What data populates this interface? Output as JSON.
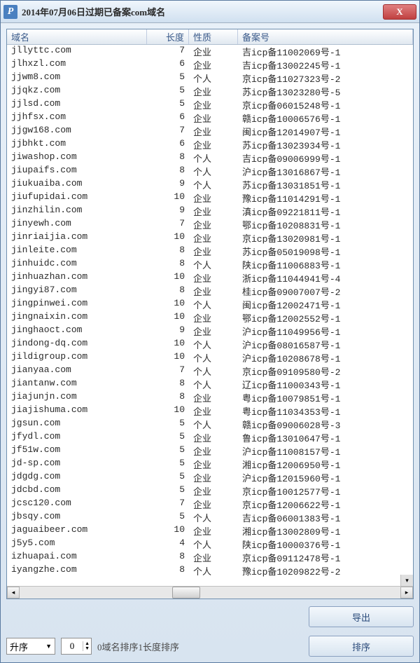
{
  "window": {
    "title": "2014年07月06日过期已备案com域名",
    "close_label": "X"
  },
  "columns": {
    "domain": "域名",
    "length": "长度",
    "nature": "性质",
    "registration": "备案号"
  },
  "rows": [
    {
      "domain": "jllyttc.com",
      "len": "7",
      "nature": "企业",
      "reg": "吉icp备11002069号-1"
    },
    {
      "domain": "jlhxzl.com",
      "len": "6",
      "nature": "企业",
      "reg": "吉icp备13002245号-1"
    },
    {
      "domain": "jjwm8.com",
      "len": "5",
      "nature": "个人",
      "reg": "京icp备11027323号-2"
    },
    {
      "domain": "jjqkz.com",
      "len": "5",
      "nature": "企业",
      "reg": "苏icp备13023280号-5"
    },
    {
      "domain": "jjlsd.com",
      "len": "5",
      "nature": "企业",
      "reg": "京icp备06015248号-1"
    },
    {
      "domain": "jjhfsx.com",
      "len": "6",
      "nature": "企业",
      "reg": "赣icp备10006576号-1"
    },
    {
      "domain": "jjgw168.com",
      "len": "7",
      "nature": "企业",
      "reg": "闽icp备12014907号-1"
    },
    {
      "domain": "jjbhkt.com",
      "len": "6",
      "nature": "企业",
      "reg": "苏icp备13023934号-1"
    },
    {
      "domain": "jiwashop.com",
      "len": "8",
      "nature": "个人",
      "reg": "吉icp备09006999号-1"
    },
    {
      "domain": "jiupaifs.com",
      "len": "8",
      "nature": "个人",
      "reg": "沪icp备13016867号-1"
    },
    {
      "domain": "jiukuaiba.com",
      "len": "9",
      "nature": "个人",
      "reg": "苏icp备13031851号-1"
    },
    {
      "domain": "jiufupidai.com",
      "len": "10",
      "nature": "企业",
      "reg": "豫icp备11014291号-1"
    },
    {
      "domain": "jinzhilin.com",
      "len": "9",
      "nature": "企业",
      "reg": "滇icp备09221811号-1"
    },
    {
      "domain": "jinyewh.com",
      "len": "7",
      "nature": "企业",
      "reg": "鄂icp备10208831号-1"
    },
    {
      "domain": "jinriaijia.com",
      "len": "10",
      "nature": "企业",
      "reg": "京icp备13020981号-1"
    },
    {
      "domain": "jinleite.com",
      "len": "8",
      "nature": "企业",
      "reg": "苏icp备05019098号-1"
    },
    {
      "domain": "jinhuidc.com",
      "len": "8",
      "nature": "个人",
      "reg": "陕icp备11006883号-1"
    },
    {
      "domain": "jinhuazhan.com",
      "len": "10",
      "nature": "企业",
      "reg": "浙icp备11044941号-4"
    },
    {
      "domain": "jingyi87.com",
      "len": "8",
      "nature": "企业",
      "reg": "桂icp备09007007号-2"
    },
    {
      "domain": "jingpinwei.com",
      "len": "10",
      "nature": "个人",
      "reg": "闽icp备12002471号-1"
    },
    {
      "domain": "jingnaixin.com",
      "len": "10",
      "nature": "企业",
      "reg": "鄂icp备12002552号-1"
    },
    {
      "domain": "jinghaoct.com",
      "len": "9",
      "nature": "企业",
      "reg": "沪icp备11049956号-1"
    },
    {
      "domain": "jindong-dq.com",
      "len": "10",
      "nature": "个人",
      "reg": "沪icp备08016587号-1"
    },
    {
      "domain": "jildigroup.com",
      "len": "10",
      "nature": "个人",
      "reg": "沪icp备10208678号-1"
    },
    {
      "domain": "jianyaa.com",
      "len": "7",
      "nature": "个人",
      "reg": "京icp备09109580号-2"
    },
    {
      "domain": "jiantanw.com",
      "len": "8",
      "nature": "个人",
      "reg": "辽icp备11000343号-1"
    },
    {
      "domain": "jiajunjn.com",
      "len": "8",
      "nature": "企业",
      "reg": "粤icp备10079851号-1"
    },
    {
      "domain": "jiajishuma.com",
      "len": "10",
      "nature": "企业",
      "reg": "粤icp备11034353号-1"
    },
    {
      "domain": "jgsun.com",
      "len": "5",
      "nature": "个人",
      "reg": "赣icp备09006028号-3"
    },
    {
      "domain": "jfydl.com",
      "len": "5",
      "nature": "企业",
      "reg": "鲁icp备13010647号-1"
    },
    {
      "domain": "jf51w.com",
      "len": "5",
      "nature": "企业",
      "reg": "沪icp备11008157号-1"
    },
    {
      "domain": "jd-sp.com",
      "len": "5",
      "nature": "企业",
      "reg": "湘icp备12006950号-1"
    },
    {
      "domain": "jdgdg.com",
      "len": "5",
      "nature": "企业",
      "reg": "沪icp备12015960号-1"
    },
    {
      "domain": "jdcbd.com",
      "len": "5",
      "nature": "企业",
      "reg": "京icp备10012577号-1"
    },
    {
      "domain": "jcsc120.com",
      "len": "7",
      "nature": "企业",
      "reg": "京icp备12006622号-1"
    },
    {
      "domain": "jbsqy.com",
      "len": "5",
      "nature": "个人",
      "reg": "吉icp备06001383号-1"
    },
    {
      "domain": "jaguaibeer.com",
      "len": "10",
      "nature": "企业",
      "reg": "湘icp备13002809号-1"
    },
    {
      "domain": "j5y5.com",
      "len": "4",
      "nature": "个人",
      "reg": "陕icp备10000376号-1"
    },
    {
      "domain": "izhuapai.com",
      "len": "8",
      "nature": "企业",
      "reg": "京icp备09112478号-1"
    },
    {
      "domain": "iyangzhe.com",
      "len": "8",
      "nature": "个人",
      "reg": "豫icp备10209822号-2"
    }
  ],
  "footer": {
    "export_label": "导出",
    "sort_order": "升序",
    "spin_value": "0",
    "hint": "0域名排序1长度排序",
    "sort_label": "排序"
  }
}
